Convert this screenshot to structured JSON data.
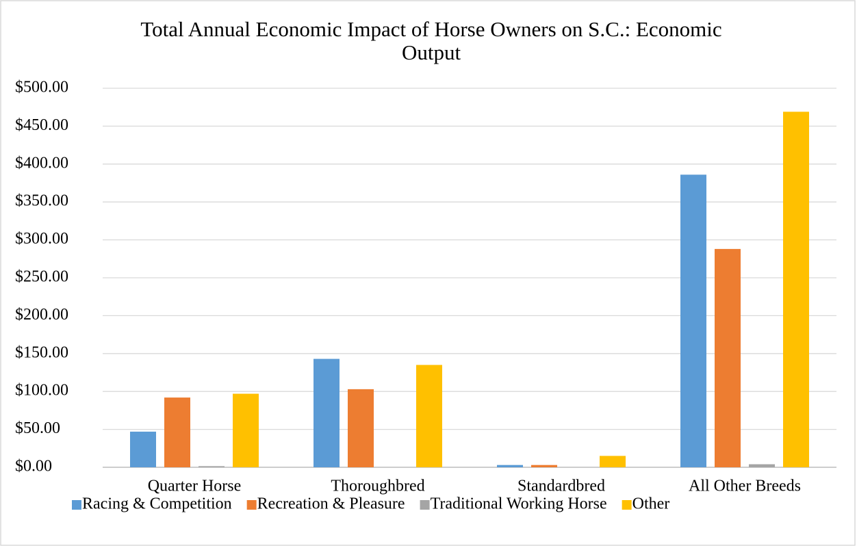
{
  "chart_data": {
    "type": "bar",
    "title": [
      "Total Annual Economic Impact of Horse Owners on S.C.: Economic",
      "Output"
    ],
    "categories": [
      "Quarter Horse",
      "Thoroughbred",
      "Standardbred",
      "All Other Breeds"
    ],
    "series": [
      {
        "name": "Racing & Competition",
        "color": "#5b9bd5",
        "values": [
          47,
          143,
          3,
          386
        ]
      },
      {
        "name": "Recreation & Pleasure",
        "color": "#ed7d31",
        "values": [
          92,
          103,
          3,
          288
        ]
      },
      {
        "name": "Traditional Working Horse",
        "color": "#a5a5a5",
        "values": [
          1.5,
          0,
          0,
          4
        ]
      },
      {
        "name": "Other",
        "color": "#ffc000",
        "values": [
          97,
          135,
          15,
          469
        ]
      }
    ],
    "ylim": [
      0,
      500
    ],
    "yticks": [
      {
        "value": 0,
        "label": "$0.00"
      },
      {
        "value": 50,
        "label": "$50.00"
      },
      {
        "value": 100,
        "label": "$100.00"
      },
      {
        "value": 150,
        "label": "$150.00"
      },
      {
        "value": 200,
        "label": "$200.00"
      },
      {
        "value": 250,
        "label": "$250.00"
      },
      {
        "value": 300,
        "label": "$300.00"
      },
      {
        "value": 350,
        "label": "$350.00"
      },
      {
        "value": 400,
        "label": "$400.00"
      },
      {
        "value": 450,
        "label": "$450.00"
      },
      {
        "value": 500,
        "label": "$500.00"
      }
    ],
    "grid": true,
    "legend": "bottom"
  }
}
